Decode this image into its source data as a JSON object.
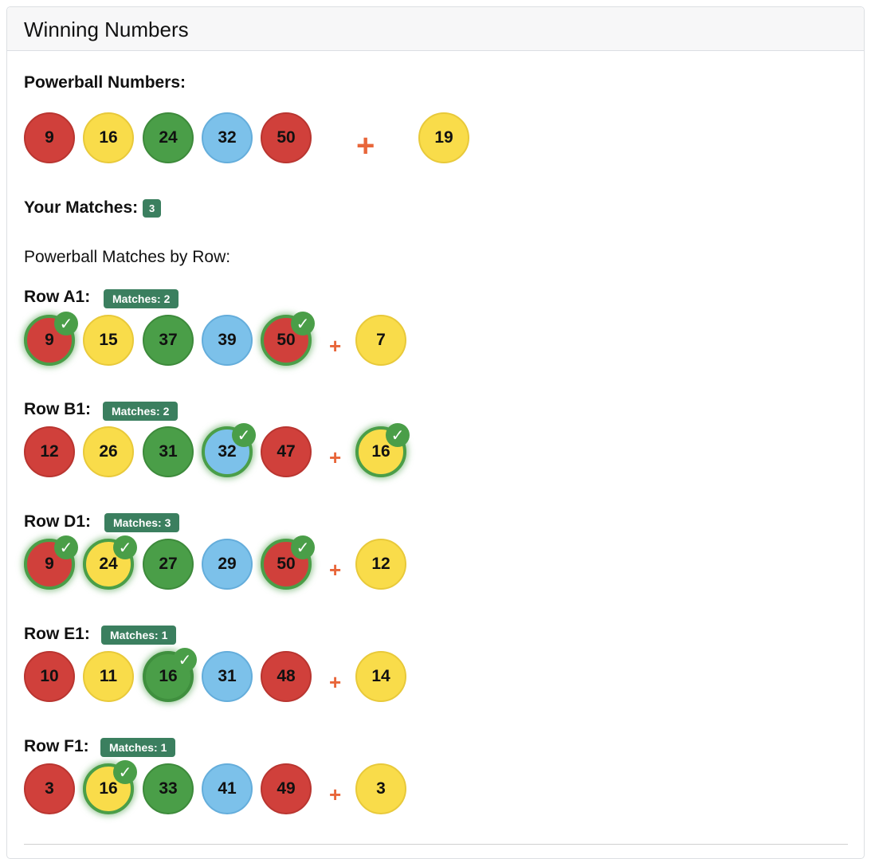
{
  "card": {
    "title": "Winning Numbers"
  },
  "winning": {
    "label": "Powerball Numbers:",
    "balls": [
      "9",
      "16",
      "24",
      "32",
      "50"
    ],
    "plus": "+",
    "powerball": "19"
  },
  "matches": {
    "label": "Your Matches:",
    "count": "3"
  },
  "rows_heading": "Powerball Matches by Row:",
  "rows": [
    {
      "label": "Row A1:",
      "badge": "Matches: 2",
      "balls": [
        "9",
        "15",
        "37",
        "39",
        "50"
      ],
      "plus": "+",
      "powerball": "7"
    },
    {
      "label": "Row B1:",
      "badge": "Matches: 2",
      "balls": [
        "12",
        "26",
        "31",
        "32",
        "47"
      ],
      "plus": "+",
      "powerball": "16"
    },
    {
      "label": "Row D1:",
      "badge": "Matches: 3",
      "balls": [
        "9",
        "24",
        "27",
        "29",
        "50"
      ],
      "plus": "+",
      "powerball": "12"
    },
    {
      "label": "Row E1:",
      "badge": "Matches: 1",
      "balls": [
        "10",
        "11",
        "16",
        "31",
        "48"
      ],
      "plus": "+",
      "powerball": "14"
    },
    {
      "label": "Row F1:",
      "badge": "Matches: 1",
      "balls": [
        "3",
        "16",
        "33",
        "41",
        "49"
      ],
      "plus": "+",
      "powerball": "3"
    }
  ],
  "check_glyph": "✓",
  "colors": {
    "red": "#d0403b",
    "yellow": "#f9dc4a",
    "green": "#4a9e48",
    "blue": "#7cc1ea",
    "badge": "#3b7f5f",
    "plus": "#e8663a"
  }
}
